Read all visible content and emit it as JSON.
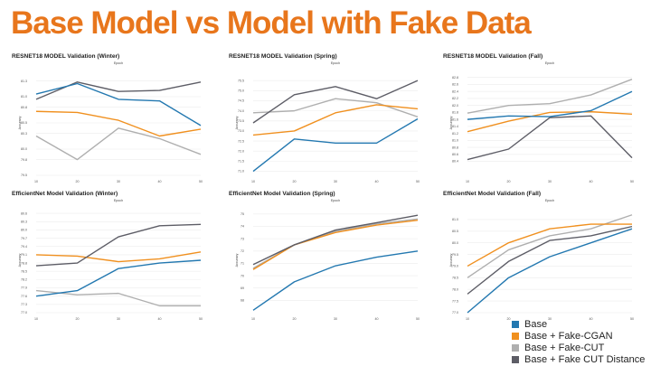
{
  "slide": {
    "title": "Base Model vs Model with Fake Data",
    "title_color": "#E8761C"
  },
  "legend": [
    {
      "label": "Base",
      "color": "#2378B0"
    },
    {
      "label": "Base + Fake-CGAN",
      "color": "#F0901F"
    },
    {
      "label": "Base + Fake-CUT",
      "color": "#AFAFAF"
    },
    {
      "label": "Base + Fake CUT Distance",
      "color": "#5D5D66"
    }
  ],
  "chart_data": [
    {
      "type": "line",
      "title": "RESNET18 MODEL Validation (Winter)",
      "xlabel": "Epoch",
      "ylabel": "Accuracy",
      "x": [
        10,
        20,
        30,
        40,
        50
      ],
      "ylim": [
        79.5,
        81.5
      ],
      "yticks": [
        "79.5",
        "79.8",
        "80.0",
        "80.3",
        "80.5",
        "80.8",
        "81.0",
        "81.3"
      ],
      "series": [
        {
          "name": "Base",
          "values": [
            81.05,
            81.25,
            80.95,
            80.92,
            80.45
          ]
        },
        {
          "name": "Base + Fake-CGAN",
          "values": [
            80.72,
            80.7,
            80.55,
            80.25,
            80.38
          ]
        },
        {
          "name": "Base + Fake-CUT",
          "values": [
            80.25,
            79.8,
            80.4,
            80.2,
            79.9
          ]
        },
        {
          "name": "Base + Fake CUT Distance",
          "values": [
            80.95,
            81.28,
            81.1,
            81.12,
            81.28
          ]
        }
      ]
    },
    {
      "type": "line",
      "title": "RESNET18 MODEL Validation (Spring)",
      "xlabel": "Epoch",
      "ylabel": "Accuracy",
      "x": [
        10,
        20,
        30,
        40,
        50
      ],
      "ylim": [
        70.8,
        76.0
      ],
      "yticks": [
        "71.0",
        "71.5",
        "72.0",
        "72.5",
        "73.0",
        "73.5",
        "74.0",
        "74.5",
        "75.0",
        "75.5"
      ],
      "series": [
        {
          "name": "Base",
          "values": [
            71.0,
            72.6,
            72.4,
            72.4,
            73.6
          ]
        },
        {
          "name": "Base + Fake-CGAN",
          "values": [
            72.8,
            73.0,
            73.9,
            74.3,
            74.1
          ]
        },
        {
          "name": "Base + Fake-CUT",
          "values": [
            73.9,
            74.0,
            74.6,
            74.4,
            73.7
          ]
        },
        {
          "name": "Base + Fake CUT Distance",
          "values": [
            73.4,
            74.8,
            75.2,
            74.6,
            75.5
          ]
        }
      ]
    },
    {
      "type": "line",
      "title": "RESNET18 MODEL Validation (Fall)",
      "xlabel": "Epoch",
      "ylabel": "Accuracy",
      "x": [
        10,
        20,
        30,
        40,
        50
      ],
      "ylim": [
        80.0,
        83.0
      ],
      "yticks": [
        "80.4",
        "80.6",
        "80.8",
        "81.0",
        "81.2",
        "81.4",
        "81.6",
        "81.8",
        "82.0",
        "82.2",
        "82.4",
        "82.6",
        "82.8"
      ],
      "series": [
        {
          "name": "Base",
          "values": [
            81.6,
            81.7,
            81.68,
            81.85,
            82.4
          ]
        },
        {
          "name": "Base + Fake-CGAN",
          "values": [
            81.25,
            81.55,
            81.8,
            81.82,
            81.75
          ]
        },
        {
          "name": "Base + Fake-CUT",
          "values": [
            81.78,
            82.0,
            82.05,
            82.3,
            82.75
          ]
        },
        {
          "name": "Base + Fake CUT Distance",
          "values": [
            80.45,
            80.75,
            81.65,
            81.7,
            80.5
          ]
        }
      ]
    },
    {
      "type": "line",
      "title": "EfficientNet Model Validation (Winter)",
      "xlabel": "Epoch",
      "ylabel": "Accuracy",
      "x": [
        10,
        20,
        30,
        40,
        50
      ],
      "ylim": [
        77.0,
        80.8
      ],
      "yticks": [
        "77.0",
        "77.3",
        "77.6",
        "77.9",
        "78.2",
        "78.5",
        "78.8",
        "79.1",
        "79.4",
        "79.7",
        "80.0",
        "80.3",
        "80.6"
      ],
      "series": [
        {
          "name": "Base",
          "values": [
            77.6,
            77.8,
            78.6,
            78.8,
            78.9
          ]
        },
        {
          "name": "Base + Fake-CGAN",
          "values": [
            79.1,
            79.05,
            78.85,
            78.95,
            79.2
          ]
        },
        {
          "name": "Base + Fake-CUT",
          "values": [
            77.8,
            77.65,
            77.7,
            77.25,
            77.25
          ]
        },
        {
          "name": "Base + Fake CUT Distance",
          "values": [
            78.7,
            78.8,
            79.75,
            80.15,
            80.2
          ]
        }
      ]
    },
    {
      "type": "line",
      "title": "EfficientNet Model Validation (Spring)",
      "xlabel": "Epoch",
      "ylabel": "Accuracy",
      "x": [
        10,
        20,
        30,
        40,
        50
      ],
      "ylim": [
        67.0,
        75.5
      ],
      "yticks": [
        "68",
        "69",
        "70",
        "71",
        "72",
        "73",
        "74",
        "75"
      ],
      "series": [
        {
          "name": "Base",
          "values": [
            67.2,
            69.5,
            70.8,
            71.5,
            72.0
          ]
        },
        {
          "name": "Base + Fake-CGAN",
          "values": [
            70.5,
            72.5,
            73.5,
            74.1,
            74.5
          ]
        },
        {
          "name": "Base + Fake-CUT",
          "values": [
            70.6,
            72.5,
            73.6,
            74.2,
            74.6
          ]
        },
        {
          "name": "Base + Fake CUT Distance",
          "values": [
            70.9,
            72.5,
            73.7,
            74.3,
            74.9
          ]
        }
      ]
    },
    {
      "type": "line",
      "title": "EfficientNet Model Validation (Fall)",
      "xlabel": "Epoch",
      "ylabel": "Accuracy",
      "x": [
        10,
        20,
        30,
        40,
        50
      ],
      "ylim": [
        77.0,
        81.5
      ],
      "yticks": [
        "77.0",
        "77.5",
        "78.0",
        "78.5",
        "79.0",
        "79.5",
        "80.0",
        "80.5",
        "81.0"
      ],
      "series": [
        {
          "name": "Base",
          "values": [
            77.0,
            78.5,
            79.4,
            80.0,
            80.6
          ]
        },
        {
          "name": "Base + Fake-CGAN",
          "values": [
            79.0,
            80.0,
            80.6,
            80.8,
            80.8
          ]
        },
        {
          "name": "Base + Fake-CUT",
          "values": [
            78.5,
            79.7,
            80.3,
            80.6,
            81.2
          ]
        },
        {
          "name": "Base + Fake CUT Distance",
          "values": [
            77.8,
            79.2,
            80.1,
            80.3,
            80.7
          ]
        }
      ]
    }
  ]
}
